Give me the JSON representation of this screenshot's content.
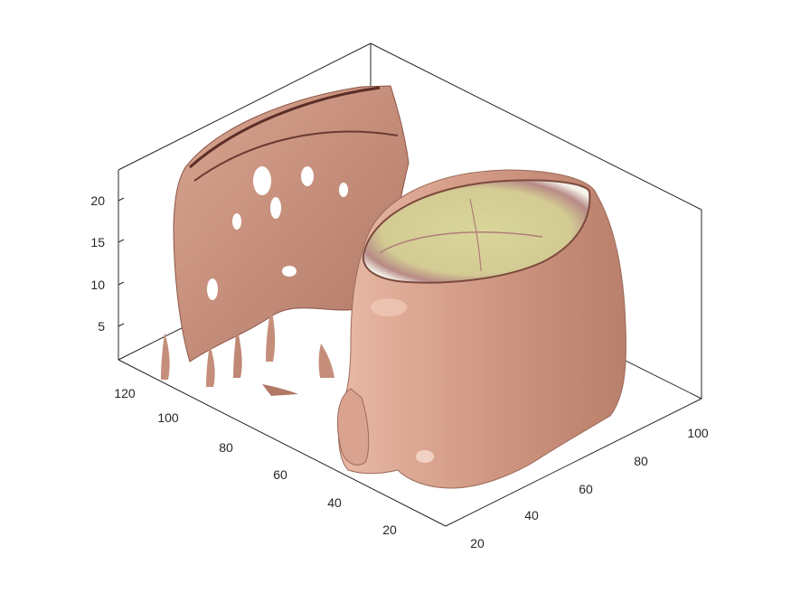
{
  "figure": {
    "z_ticks": [
      "5",
      "10",
      "15",
      "20"
    ],
    "y_ticks": [
      "120",
      "100",
      "80",
      "60",
      "40",
      "20"
    ],
    "x_ticks": [
      "20",
      "40",
      "60",
      "80",
      "100"
    ]
  },
  "colors": {
    "skin": "#c9917e",
    "skin_light": "#e6b6a2",
    "skin_dark": "#7c4a3e",
    "brain_slice": "#dedca0",
    "axis_line": "#262626"
  }
}
